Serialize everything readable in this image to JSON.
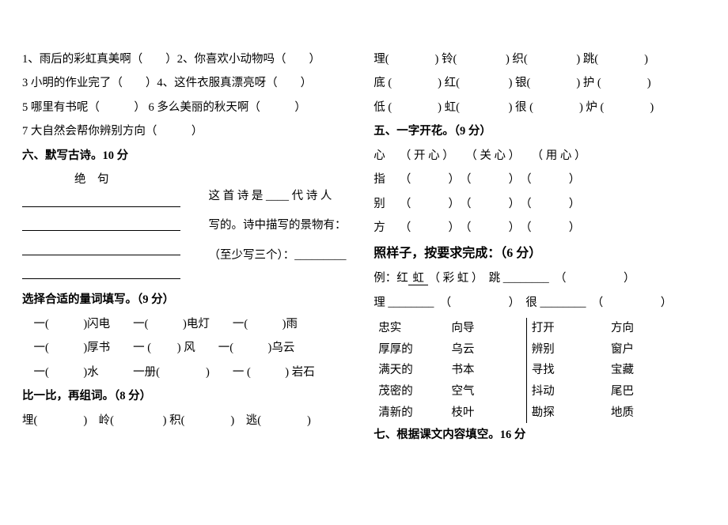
{
  "left": {
    "q1": "1、雨后的彩虹真美啊（　　）2、你喜欢小动物吗（　　）",
    "q3": "3 小明的作业完了（　　）4、这件衣服真漂亮呀（　　）",
    "q5": "5 哪里有书呢（　　　）  6 多么美丽的秋天啊（　　　）",
    "q7": "7 大自然会帮你辨别方向（　　　）",
    "sec6_title": "六、默写古诗。10 分",
    "poem_title": "绝　句",
    "desc1": "这 首 诗 是 ____ 代 诗 人",
    "desc2": "写的。诗中描写的景物有：",
    "desc3": "（至少写三个）：_________",
    "measure_title": "选择合适的量词填写。（9 分）",
    "m1": "　一(　　　)闪电　　一(　　　)电灯　　一(　　　)雨",
    "m2": "　一(　　　)厚书　　一 (  　　)  风　　一(　　　)乌云",
    "m3": "　一(　　　)水　　　一册(　　　　)　　一  (　　　) 岩石",
    "compare_title": "比一比，再组词。（8 分）",
    "c1": "埋(　　　　)　岭(　　　　 )   积(　　　　)　逃(　　　　)"
  },
  "right": {
    "r1": "理(　　　　)  铃(　　　　 )  织(　　　　 )  跳(　　　　)",
    "r2": "底 (　　　　) 红(　　　　 )  银(　　　　)  护 (　　　　)",
    "r3": "低 (　　　　) 虹(　　　　 )  很 (　　　　)  炉 (　　　　)",
    "sec5_title": "五、一字开花。（9 分）",
    "f_xin": "心　 （ 开 心 ）　　（ 关 心 ）　　（ 用 心 ）",
    "f_zhi": "指　 （  　　　）　（  　　　）　（  　　　）",
    "f_bie": "别　 （  　　　）　（  　　　）　（  　　　）",
    "f_fang": "方　 （  　　　）　（  　　　）　（  　　　）",
    "example_title": "照样子，按要求完成：（6  分）",
    "ex_line": "例：红",
    "ex_hong": " 虹 ",
    "ex_after": "（ 彩  虹 ）　跳  ________　（　　　　　）",
    "ex2": "理  ________　（　　　　　）　很  ________　（　　　　　）",
    "match": {
      "rows": [
        [
          "忠实",
          "向导",
          "打开",
          "方向"
        ],
        [
          "厚厚的",
          "乌云",
          "辨别",
          "窗户"
        ],
        [
          "满天的",
          "书本",
          "寻找",
          "宝藏"
        ],
        [
          "茂密的",
          "空气",
          "抖动",
          "尾巴"
        ],
        [
          "清新的",
          "枝叶",
          "勘探",
          "地质"
        ]
      ]
    },
    "sec7_title": "七、根据课文内容填空。16 分"
  }
}
